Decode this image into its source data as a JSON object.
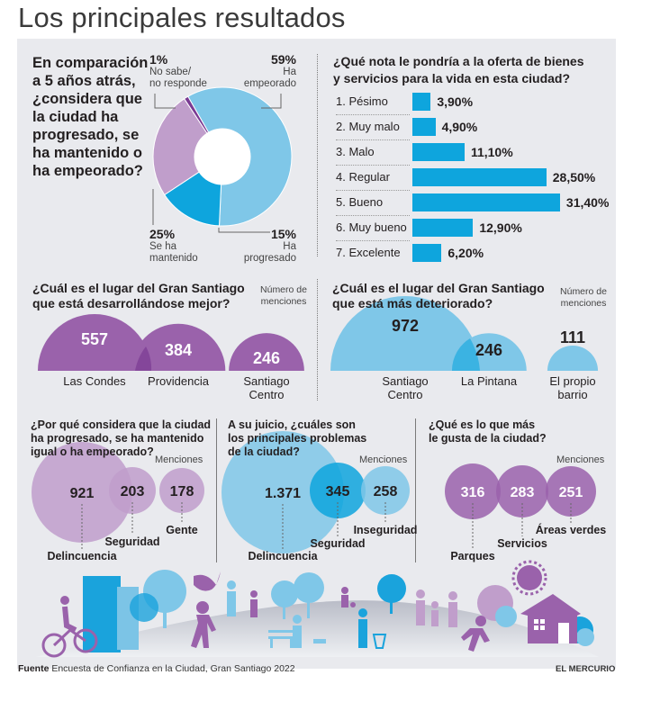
{
  "title": "Los principales resultados",
  "colors": {
    "panel": "#e9eaee",
    "light_blue": "#7fc7e8",
    "blue": "#0ea5dd",
    "purple": "#9a62ab",
    "light_purple": "#c09ecb",
    "dark_purple": "#7a3a93"
  },
  "chart_data": [
    {
      "type": "pie",
      "title": "En comparación a 5 años atrás, ¿considera que la ciudad ha progresado, se ha mantenido o ha empeorado?",
      "slices": [
        {
          "label_line1": "Ha",
          "label_line2": "empeorado",
          "value": 59,
          "pct_label": "59%"
        },
        {
          "label_line1": "Ha",
          "label_line2": "progresado",
          "value": 15,
          "pct_label": "15%"
        },
        {
          "label_line1": "Se ha",
          "label_line2": "mantenido",
          "value": 25,
          "pct_label": "25%"
        },
        {
          "label_line1": "No sabe/",
          "label_line2": "no responde",
          "value": 1,
          "pct_label": "1%"
        }
      ]
    },
    {
      "type": "bar",
      "title": "¿Qué nota le pondría a la oferta de bienes y servicios para la vida en esta ciudad?",
      "categories": [
        "1. Pésimo",
        "2. Muy malo",
        "3. Malo",
        "4. Regular",
        "5. Bueno",
        "6. Muy bueno",
        "7. Excelente"
      ],
      "values": [
        3.9,
        4.9,
        11.1,
        28.5,
        31.4,
        12.9,
        6.2
      ],
      "value_labels": [
        "3,90%",
        "4,90%",
        "11,10%",
        "28,50%",
        "31,40%",
        "12,90%",
        "6,20%"
      ]
    },
    {
      "type": "bubble",
      "title": "¿Cuál es el lugar del Gran Santiago que está desarrollándose mejor?",
      "note": "Número de menciones",
      "categories": [
        "Las Condes",
        "Providencia",
        "Santiago Centro"
      ],
      "label_lines": [
        [
          "Las Condes"
        ],
        [
          "Providencia"
        ],
        [
          "Santiago",
          "Centro"
        ]
      ],
      "values": [
        557,
        384,
        246
      ],
      "value_labels": [
        "557",
        "384",
        "246"
      ]
    },
    {
      "type": "bubble",
      "title": "¿Cuál es el lugar del Gran Santiago que está más deteriorado?",
      "note": "Número de menciones",
      "categories": [
        "Santiago Centro",
        "La Pintana",
        "El propio barrio"
      ],
      "label_lines": [
        [
          "Santiago",
          "Centro"
        ],
        [
          "La Pintana"
        ],
        [
          "El propio",
          "barrio"
        ]
      ],
      "values": [
        972,
        246,
        111
      ],
      "value_labels": [
        "972",
        "246",
        "111"
      ]
    },
    {
      "type": "bubble",
      "title": "¿Por qué considera que la ciudad ha progresado, se ha mantenido igual o ha empeorado?",
      "note": "Menciones",
      "categories": [
        "Delincuencia",
        "Seguridad",
        "Gente"
      ],
      "values": [
        921,
        203,
        178
      ],
      "value_labels": [
        "921",
        "203",
        "178"
      ]
    },
    {
      "type": "bubble",
      "title": "A su juicio, ¿cuáles son los principales problemas de la ciudad?",
      "note": "Menciones",
      "categories": [
        "Delincuencia",
        "Seguridad",
        "Inseguridad"
      ],
      "values": [
        1371,
        345,
        258
      ],
      "value_labels": [
        "1.371",
        "345",
        "258"
      ]
    },
    {
      "type": "bubble",
      "title": "¿Qué es lo que más le gusta de la ciudad?",
      "note": "Menciones",
      "categories": [
        "Parques",
        "Servicios",
        "Áreas verdes"
      ],
      "values": [
        316,
        283,
        251
      ],
      "value_labels": [
        "316",
        "283",
        "251"
      ]
    }
  ],
  "q1_lines": [
    "En comparación",
    "a 5 años atrás,",
    "¿considera que",
    "la ciudad ha",
    "progresado, se",
    "ha mantenido o",
    "ha empeorado?"
  ],
  "q2_lines": [
    "¿Qué nota le pondría a la oferta de bienes",
    "y servicios para la vida en esta ciudad?"
  ],
  "q3_lines": [
    "¿Cuál es el lugar del Gran Santiago",
    "que está desarrollándose mejor?"
  ],
  "q4_lines": [
    "¿Cuál es el lugar del Gran Santiago",
    "que está más deteriorado?"
  ],
  "q5_lines": [
    "¿Por qué considera que la ciudad",
    "ha progresado, se ha mantenido",
    "igual o ha empeorado?"
  ],
  "q6_lines": [
    "A su juicio, ¿cuáles son",
    "los principales problemas",
    "de la ciudad?"
  ],
  "q7_lines": [
    "¿Qué es lo que más",
    "le gusta de la ciudad?"
  ],
  "note_numero": [
    "Número de",
    "menciones"
  ],
  "footer": {
    "source_label": "Fuente",
    "source_text": "Encuesta de Confianza en la Ciudad, Gran Santiago 2022",
    "brand": "EL MERCURIO"
  },
  "illustration": {
    "icons": [
      "cyclist-icon",
      "building-icon",
      "tree-icon",
      "bird-icon",
      "walking-person-icon",
      "elderly-person-icon",
      "child-icon",
      "bench-icon",
      "dog-walker-icon",
      "child-ball-icon",
      "trash-person-icon",
      "family-icon",
      "running-person-icon",
      "sun-icon",
      "house-icon"
    ]
  }
}
